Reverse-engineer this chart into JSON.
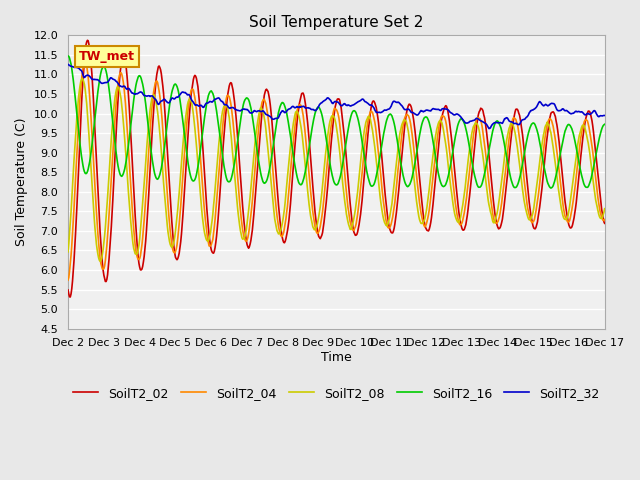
{
  "title": "Soil Temperature Set 2",
  "xlabel": "Time",
  "ylabel": "Soil Temperature (C)",
  "ylim": [
    4.5,
    12.0
  ],
  "series_colors": {
    "SoilT2_02": "#cc0000",
    "SoilT2_04": "#ff8800",
    "SoilT2_08": "#cccc00",
    "SoilT2_16": "#00cc00",
    "SoilT2_32": "#0000cc"
  },
  "legend_labels": [
    "SoilT2_02",
    "SoilT2_04",
    "SoilT2_08",
    "SoilT2_16",
    "SoilT2_32"
  ],
  "xtick_labels": [
    "Dec 2",
    "Dec 3",
    "Dec 4",
    "Dec 5",
    "Dec 6",
    "Dec 7",
    "Dec 8",
    "Dec 9",
    "Dec 10",
    "Dec 11",
    "Dec 12",
    "Dec 13",
    "Dec 14",
    "Dec 15",
    "Dec 16",
    "Dec 17"
  ],
  "annotation_text": "TW_met",
  "annotation_color": "#cc0000",
  "annotation_bg": "#ffff99",
  "annotation_border": "#cc8800",
  "background_color": "#e8e8e8",
  "plot_bg": "#f0f0f0",
  "grid_color": "#ffffff",
  "title_fontsize": 11,
  "label_fontsize": 9,
  "tick_fontsize": 8,
  "legend_fontsize": 9,
  "line_width": 1.2,
  "num_points": 720
}
